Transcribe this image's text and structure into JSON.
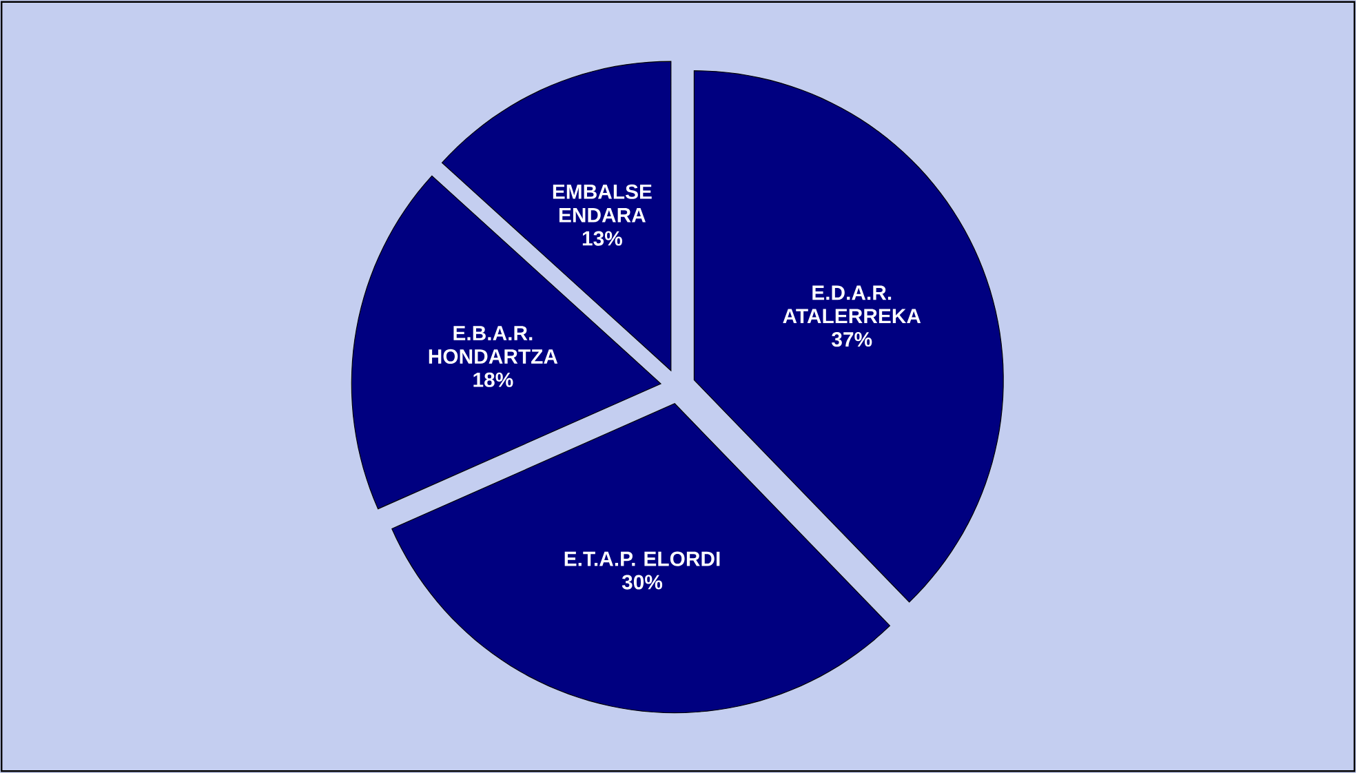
{
  "chart_data": {
    "type": "pie",
    "categories": [
      "E.D.A.R. ATALERREKA",
      "E.T.A.P. ELORDI",
      "E.B.A.R. HONDARTZA",
      "EMBALSE ENDARA"
    ],
    "values": [
      37,
      30,
      18,
      13
    ],
    "value_labels": [
      "37%",
      "30%",
      "18%",
      "13%"
    ],
    "colors": [
      "#000080",
      "#000080",
      "#000080",
      "#000080"
    ],
    "legend": false
  }
}
